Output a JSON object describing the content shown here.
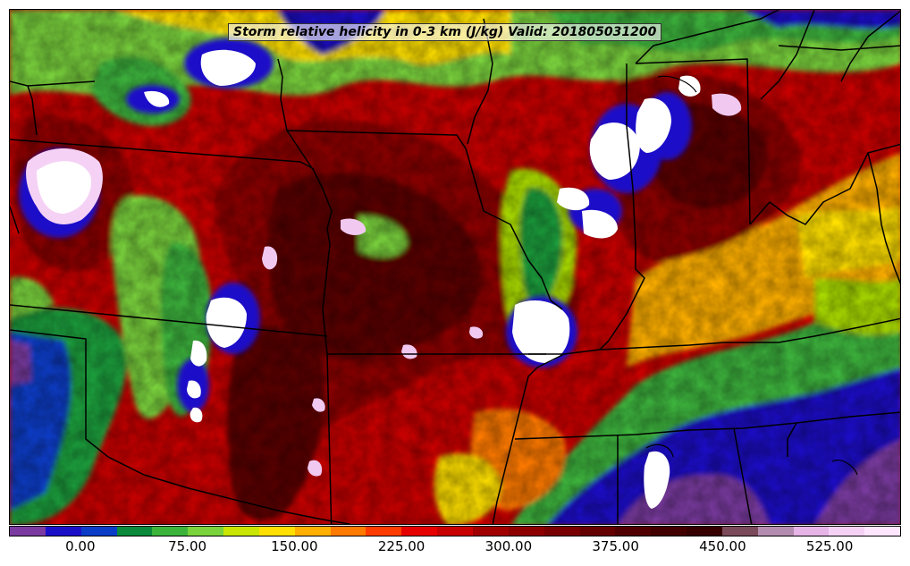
{
  "title": "Storm relative helicity in 0-3 km (J/kg) Valid: 201805031200",
  "colorbar": {
    "colors": [
      "#7a3aa0",
      "#1a10c8",
      "#0a3cc8",
      "#0a8a3a",
      "#3cb43c",
      "#7ad23c",
      "#c8e600",
      "#ffe000",
      "#ffb000",
      "#ff7a00",
      "#ff3c00",
      "#e60000",
      "#c80000",
      "#a00000",
      "#8c0000",
      "#780000",
      "#640000",
      "#500000",
      "#420000",
      "#360000",
      "#7a4a5a",
      "#b48cb0",
      "#e6b4e6",
      "#f5d2f5",
      "#ffe6ff"
    ],
    "ticks": [
      "0.00",
      "75.00",
      "150.00",
      "225.00",
      "300.00",
      "375.00",
      "450.00",
      "525.00"
    ]
  },
  "map": {
    "field_colors": {
      "low_purple": "#7a3aa0",
      "blue": "#1a10c8",
      "green": "#1aa03c",
      "lime": "#aadc00",
      "yellow": "#ffe000",
      "orange": "#ff8c00",
      "red": "#e60000",
      "dark_red": "#8c0000",
      "maroon": "#5a0000",
      "pink": "#f0c8f0",
      "white": "#ffffff"
    }
  }
}
